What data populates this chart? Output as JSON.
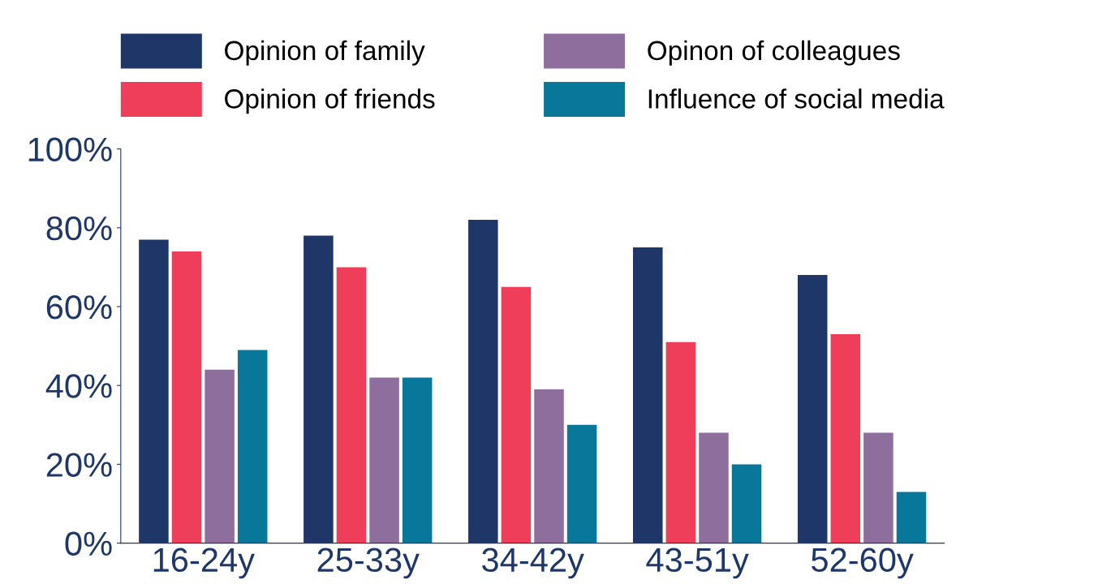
{
  "chart_data": {
    "type": "bar",
    "categories": [
      "16-24y",
      "25-33y",
      "34-42y",
      "43-51y",
      "52-60y"
    ],
    "series": [
      {
        "name": "Opinion of family",
        "color": "#1e3768",
        "values": [
          77,
          78,
          82,
          75,
          68
        ]
      },
      {
        "name": "Opinion of friends",
        "color": "#ee3e5a",
        "values": [
          74,
          70,
          65,
          51,
          53
        ]
      },
      {
        "name": "Opinon of colleagues",
        "color": "#8e6e9c",
        "values": [
          44,
          42,
          39,
          28,
          28
        ]
      },
      {
        "name": "Influence of social media",
        "color": "#087799",
        "values": [
          49,
          42,
          30,
          20,
          13
        ]
      }
    ],
    "ylim": [
      0,
      100
    ],
    "yticks": [
      {
        "value": 0,
        "label": "0%"
      },
      {
        "value": 20,
        "label": "20%"
      },
      {
        "value": 40,
        "label": "40%"
      },
      {
        "value": 60,
        "label": "60%"
      },
      {
        "value": 80,
        "label": "80%"
      },
      {
        "value": 100,
        "label": "100%"
      }
    ],
    "grid": false,
    "legend": "top"
  }
}
